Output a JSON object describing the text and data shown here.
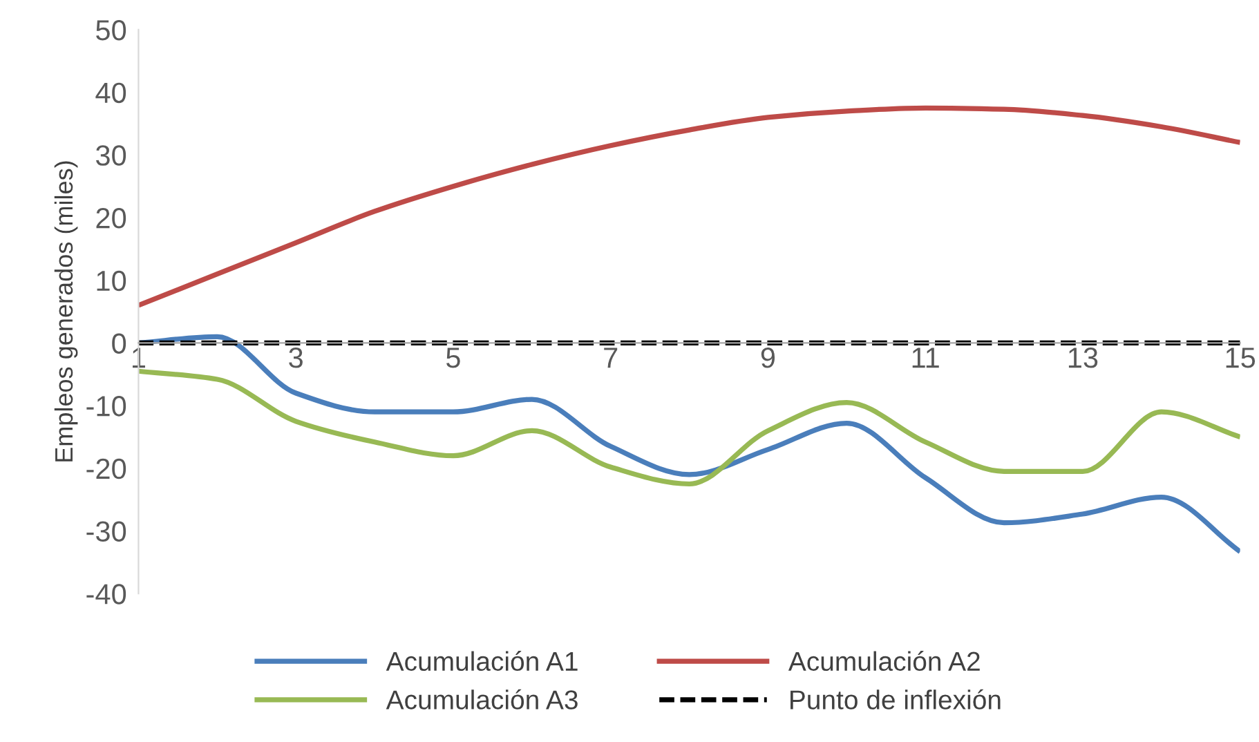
{
  "chart_data": {
    "type": "line",
    "ylabel": "Empleos generados (miles)",
    "x": [
      1,
      2,
      3,
      4,
      5,
      6,
      7,
      8,
      9,
      10,
      11,
      12,
      13,
      14,
      15
    ],
    "xlim": [
      1,
      15
    ],
    "xticks": [
      1,
      3,
      5,
      7,
      9,
      11,
      13,
      15
    ],
    "ylim": [
      -40,
      50
    ],
    "yticks": [
      -40,
      -30,
      -20,
      -10,
      0,
      10,
      20,
      30,
      40,
      50
    ],
    "grid": false,
    "legend": "bottom",
    "marker": "none",
    "series": [
      {
        "name": "Acumulación A1",
        "color": "#4a7ebb",
        "values": [
          0,
          1,
          -8,
          -11,
          -11,
          -9,
          -16.5,
          -21,
          -17,
          -12.8,
          -21.5,
          -28.7,
          -27.3,
          -24.6,
          -33.3
        ]
      },
      {
        "name": "Acumulación A2",
        "color": "#be4b48",
        "values": [
          6,
          11,
          16,
          21,
          25,
          28.5,
          31.5,
          34,
          36,
          37,
          37.5,
          37.3,
          36.3,
          34.5,
          32
        ]
      },
      {
        "name": "Acumulación A3",
        "color": "#98b954",
        "values": [
          -4.5,
          -5.8,
          -12.5,
          -15.8,
          -18,
          -14,
          -19.8,
          -22.5,
          -14,
          -9.5,
          -15.8,
          -20.5,
          -20.5,
          -11,
          -15
        ]
      },
      {
        "name": "Punto de inflexión",
        "color": "#000000",
        "line_style": "dashed",
        "values": [
          0,
          0,
          0,
          0,
          0,
          0,
          0,
          0,
          0,
          0,
          0,
          0,
          0,
          0,
          0
        ]
      }
    ]
  }
}
